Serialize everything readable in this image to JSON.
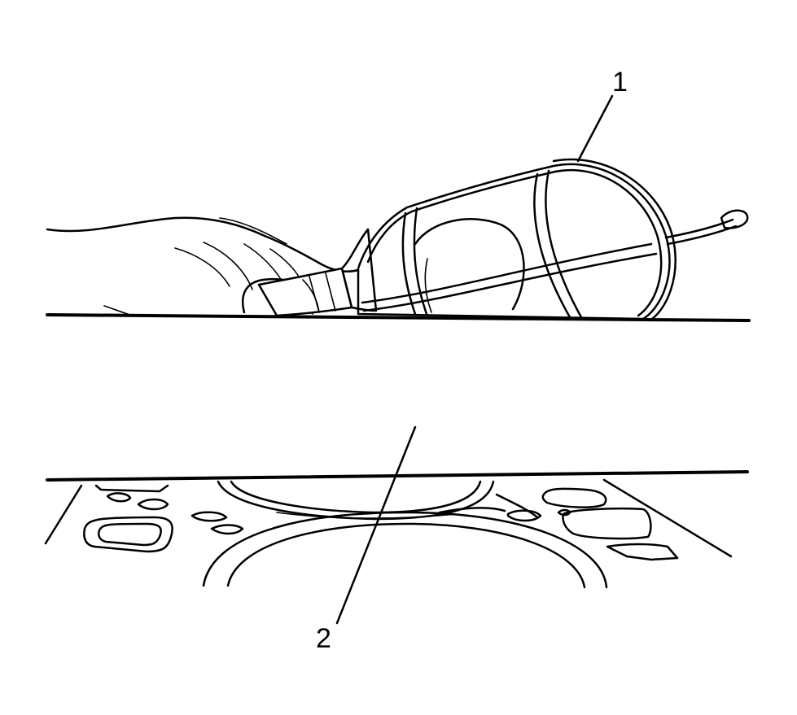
{
  "callouts": {
    "c1": "1",
    "c2": "2"
  }
}
